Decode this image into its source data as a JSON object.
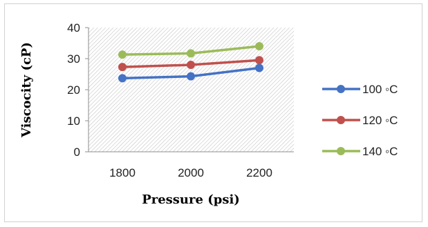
{
  "chart_data": {
    "type": "line",
    "title": "",
    "xlabel": "Pressure (psi)",
    "ylabel": "Viscocity (cP)",
    "categories": [
      "1800",
      "2000",
      "2200"
    ],
    "ylim": [
      0,
      40
    ],
    "yticks": [
      "0",
      "10",
      "20",
      "30",
      "40"
    ],
    "grid": false,
    "plot_area_fill": "hatched",
    "legend_position": "right",
    "series": [
      {
        "name": "100 ◦C",
        "values": [
          23.7,
          24.3,
          27.0
        ],
        "color": "#4472C4"
      },
      {
        "name": "120 ◦C",
        "values": [
          27.3,
          28.0,
          29.5
        ],
        "color": "#C0504D"
      },
      {
        "name": "140 ◦C",
        "values": [
          31.3,
          31.7,
          34.0
        ],
        "color": "#9BBB59"
      }
    ]
  }
}
